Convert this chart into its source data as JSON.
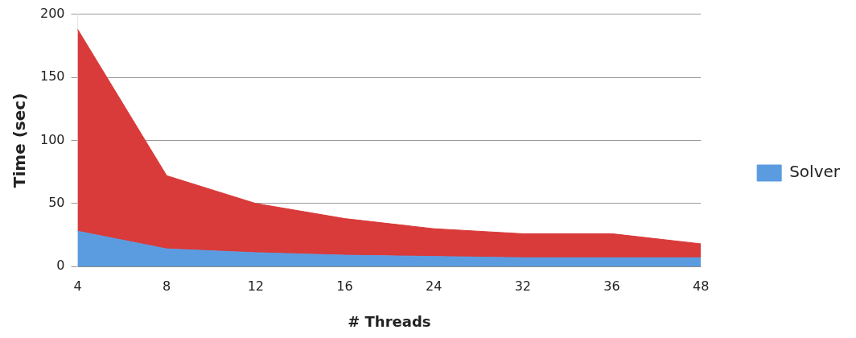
{
  "chart_data": {
    "type": "area",
    "stacked": true,
    "xlabel": "# Threads",
    "ylabel": "Time (sec)",
    "categories": [
      "4",
      "8",
      "12",
      "16",
      "24",
      "32",
      "36",
      "48"
    ],
    "series": [
      {
        "name": "Solver",
        "color": "#5b9be0",
        "values": [
          28,
          14,
          11,
          9,
          8,
          7,
          7,
          7
        ]
      },
      {
        "color": "#d93a3a",
        "values": [
          160,
          58,
          39,
          29,
          22,
          19,
          19,
          11
        ]
      }
    ],
    "ylim": [
      0,
      200
    ],
    "yticks": [
      0,
      50,
      100,
      150,
      200
    ],
    "grid": "y",
    "legend": "right"
  }
}
